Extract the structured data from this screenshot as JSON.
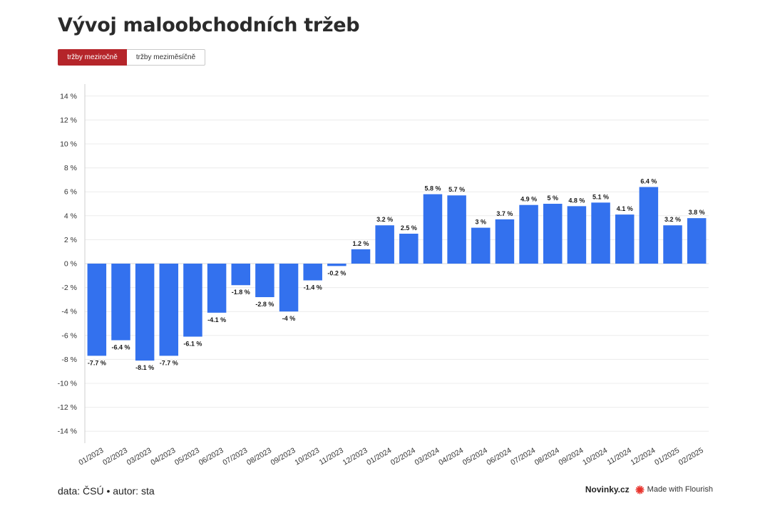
{
  "title": "Vývoj maloobchodních tržeb",
  "tabs": [
    {
      "label": "tržby meziročně",
      "active": true
    },
    {
      "label": "tržby meziměsíčně",
      "active": false
    }
  ],
  "footer": {
    "source": "data: ČSÚ • autor: sta",
    "brand": "Novinky.cz",
    "flourish": "Made with Flourish"
  },
  "colors": {
    "bar": "#3371ee",
    "active_tab": "#b5252a",
    "flourish_icon": "#e8322b"
  },
  "chart_data": {
    "type": "bar",
    "categories": [
      "01/2023",
      "02/2023",
      "03/2023",
      "04/2023",
      "05/2023",
      "06/2023",
      "07/2023",
      "08/2023",
      "09/2023",
      "10/2023",
      "11/2023",
      "12/2023",
      "01/2024",
      "02/2024",
      "03/2024",
      "04/2024",
      "05/2024",
      "06/2024",
      "07/2024",
      "08/2024",
      "09/2024",
      "10/2024",
      "11/2024",
      "12/2024",
      "01/2025",
      "02/2025"
    ],
    "values": [
      -7.7,
      -6.4,
      -8.1,
      -7.7,
      -6.1,
      -4.1,
      -1.8,
      -2.8,
      -4,
      -1.4,
      -0.2,
      1.2,
      3.2,
      2.5,
      5.8,
      5.7,
      3,
      3.7,
      4.9,
      5,
      4.8,
      5.1,
      4.1,
      6.4,
      3.2,
      3.8
    ],
    "data_labels": [
      "-7.7 %",
      "-6.4 %",
      "-8.1 %",
      "-7.7 %",
      "-6.1 %",
      "-4.1 %",
      "-1.8 %",
      "-2.8 %",
      "-4 %",
      "-1.4 %",
      "-0.2 %",
      "1.2 %",
      "3.2 %",
      "2.5 %",
      "5.8 %",
      "5.7 %",
      "3 %",
      "3.7 %",
      "4.9 %",
      "5 %",
      "4.8 %",
      "5.1 %",
      "4.1 %",
      "6.4 %",
      "3.2 %",
      "3.8 %"
    ],
    "ylim": [
      -15,
      15
    ],
    "y_ticks": [
      14,
      12,
      10,
      8,
      6,
      4,
      2,
      0,
      -2,
      -4,
      -6,
      -8,
      -10,
      -12,
      -14
    ],
    "y_tick_labels": [
      "14 %",
      "12 %",
      "10 %",
      "8 %",
      "6 %",
      "4 %",
      "2 %",
      "0 %",
      "-2 %",
      "-4 %",
      "-6 %",
      "-8 %",
      "-10 %",
      "-12 %",
      "-14 %"
    ],
    "grid": true,
    "legend": "none"
  }
}
